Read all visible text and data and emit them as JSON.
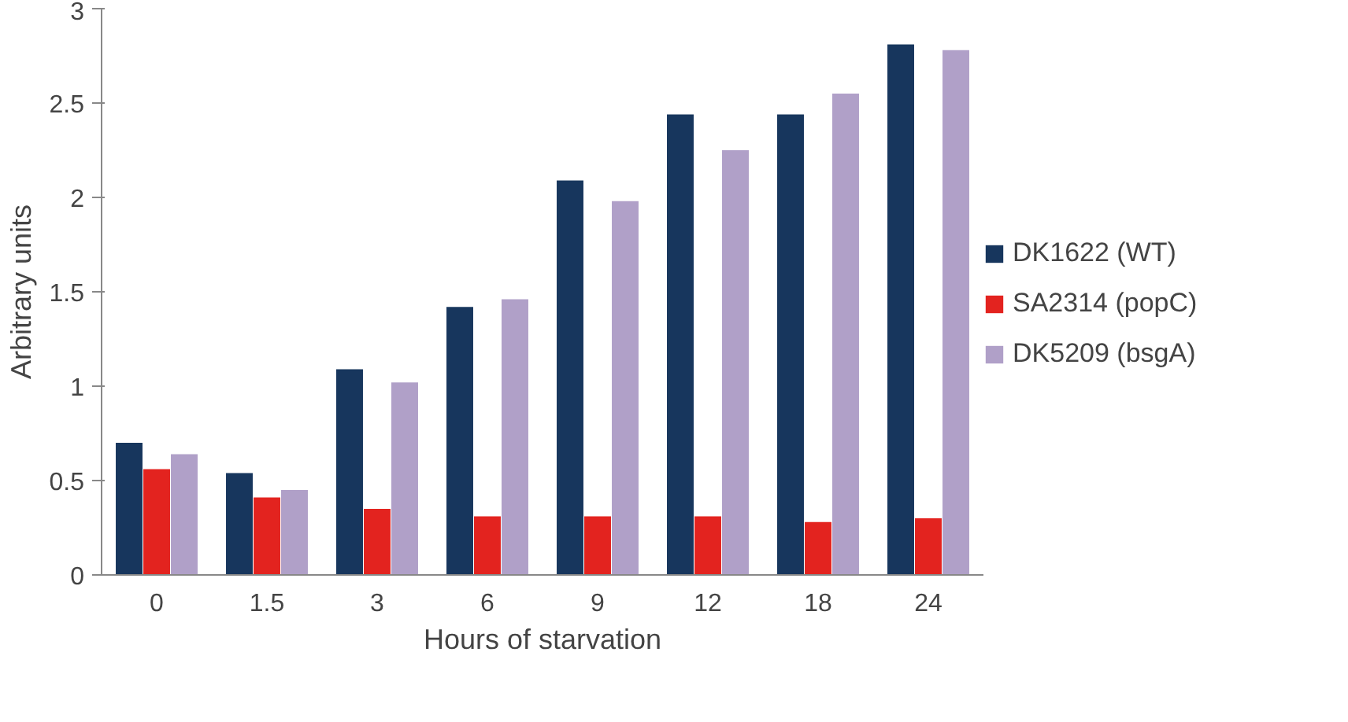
{
  "chart_data": {
    "type": "bar",
    "xlabel": "Hours of starvation",
    "ylabel": "Arbitrary units",
    "categories": [
      "0",
      "1.5",
      "3",
      "6",
      "9",
      "12",
      "18",
      "24"
    ],
    "series": [
      {
        "name": "DK1622 (WT)",
        "color": "#17365d",
        "values": [
          0.7,
          0.54,
          1.09,
          1.42,
          2.09,
          2.44,
          2.44,
          2.81
        ]
      },
      {
        "name": "SA2314 (popC)",
        "color": "#e3231f",
        "values": [
          0.56,
          0.41,
          0.35,
          0.31,
          0.31,
          0.31,
          0.28,
          0.3
        ]
      },
      {
        "name": "DK5209 (bsgA)",
        "color": "#b0a0c8",
        "values": [
          0.64,
          0.45,
          1.02,
          1.46,
          1.98,
          2.25,
          2.55,
          2.78
        ]
      }
    ],
    "ylim": [
      0,
      3
    ],
    "yticks": [
      0,
      0.5,
      1,
      1.5,
      2,
      2.5,
      3
    ],
    "grid": false,
    "legend": "right"
  }
}
